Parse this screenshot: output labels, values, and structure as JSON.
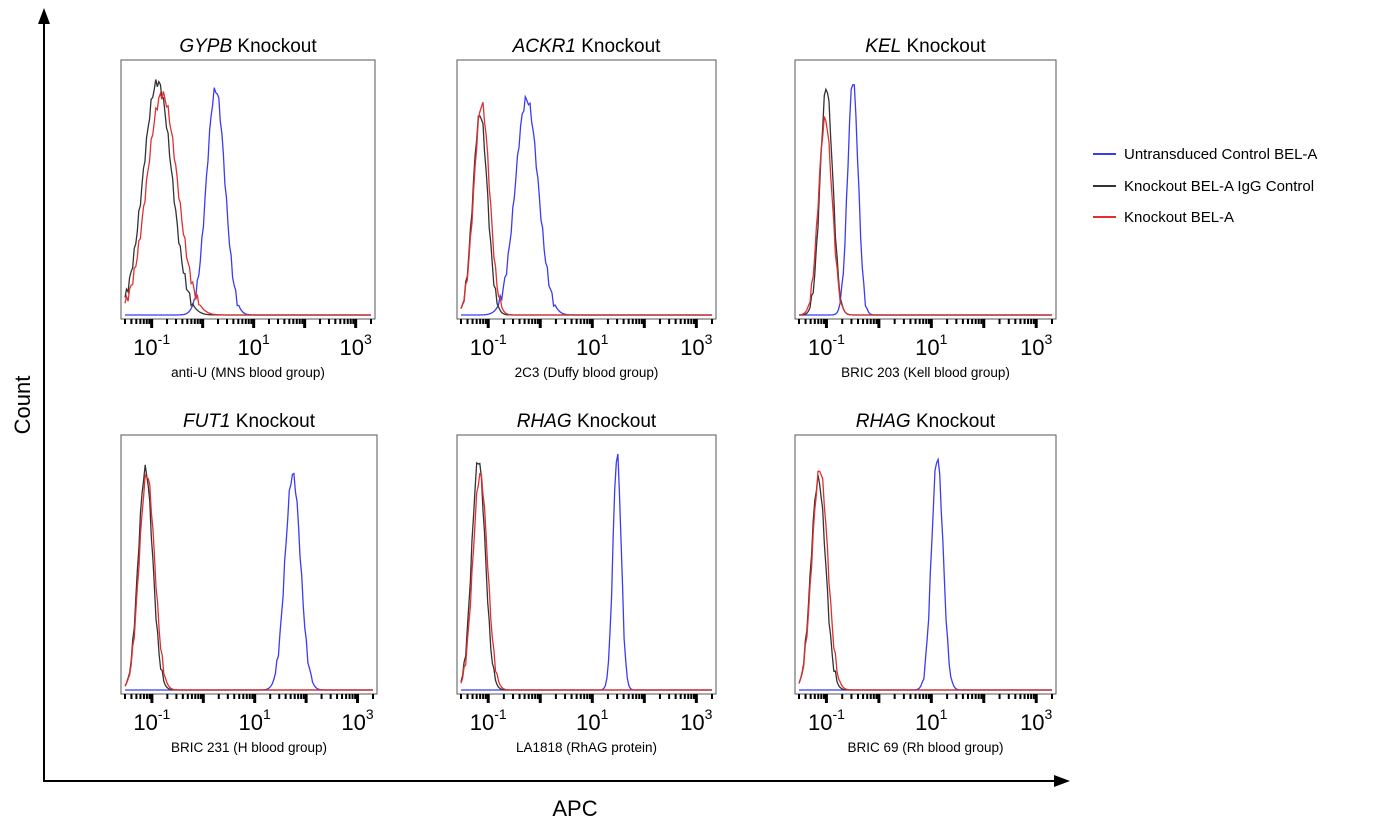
{
  "figure": {
    "y_axis_label": "Count",
    "x_axis_label": "APC"
  },
  "legend": [
    {
      "label": "Untransduced Control BEL-A",
      "color": "#3b3bf5"
    },
    {
      "label": "Knockout BEL-A IgG Control",
      "color": "#333333"
    },
    {
      "label": "Knockout BEL-A",
      "color": "#e03030"
    }
  ],
  "chart_data": [
    {
      "type": "line",
      "scale": "log",
      "title_gene": "GYPB",
      "title_suffix": "Knockout",
      "xlabel": "anti-U (MNS blood group)",
      "xlim": [
        0.03,
        2000
      ],
      "tick_labels": [
        {
          "base": "10",
          "exp": "-1",
          "value": 0.1
        },
        {
          "base": "10",
          "exp": "1",
          "value": 10
        },
        {
          "base": "10",
          "exp": "3",
          "value": 1000
        }
      ],
      "series": [
        {
          "name": "Untransduced Control BEL-A",
          "peaks": [
            {
              "center": 1.8,
              "width": 0.18,
              "height": 0.92
            }
          ]
        },
        {
          "name": "Knockout BEL-A IgG Control",
          "peaks": [
            {
              "center": 0.13,
              "width": 0.28,
              "height": 0.95
            }
          ]
        },
        {
          "name": "Knockout BEL-A",
          "peaks": [
            {
              "center": 0.16,
              "width": 0.3,
              "height": 0.9
            }
          ]
        }
      ]
    },
    {
      "type": "line",
      "scale": "log",
      "title_gene": "ACKR1",
      "title_suffix": "Knockout",
      "xlabel": "2C3 (Duffy blood group)",
      "xlim": [
        0.03,
        2000
      ],
      "tick_labels": [
        {
          "base": "10",
          "exp": "-1",
          "value": 0.1
        },
        {
          "base": "10",
          "exp": "1",
          "value": 10
        },
        {
          "base": "10",
          "exp": "3",
          "value": 1000
        }
      ],
      "series": [
        {
          "name": "Untransduced Control BEL-A",
          "peaks": [
            {
              "center": 0.55,
              "width": 0.22,
              "height": 0.88
            }
          ]
        },
        {
          "name": "Knockout BEL-A IgG Control",
          "peaks": [
            {
              "center": 0.07,
              "width": 0.14,
              "height": 0.82
            }
          ]
        },
        {
          "name": "Knockout BEL-A",
          "peaks": [
            {
              "center": 0.075,
              "width": 0.15,
              "height": 0.86
            }
          ]
        }
      ]
    },
    {
      "type": "line",
      "scale": "log",
      "title_gene": "KEL",
      "title_suffix": "Knockout",
      "xlabel": "BRIC 203 (Kell blood group)",
      "xlim": [
        0.03,
        2000
      ],
      "tick_labels": [
        {
          "base": "10",
          "exp": "-1",
          "value": 0.1
        },
        {
          "base": "10",
          "exp": "1",
          "value": 10
        },
        {
          "base": "10",
          "exp": "3",
          "value": 1000
        }
      ],
      "series": [
        {
          "name": "Untransduced Control BEL-A",
          "peaks": [
            {
              "center": 0.32,
              "width": 0.1,
              "height": 0.96
            }
          ]
        },
        {
          "name": "Knockout BEL-A IgG Control",
          "peaks": [
            {
              "center": 0.1,
              "width": 0.12,
              "height": 0.93
            }
          ]
        },
        {
          "name": "Knockout BEL-A",
          "peaks": [
            {
              "center": 0.095,
              "width": 0.13,
              "height": 0.8
            }
          ]
        }
      ]
    },
    {
      "type": "line",
      "scale": "log",
      "title_gene": "FUT1",
      "title_suffix": "Knockout",
      "xlabel": "BRIC 231 (H blood group)",
      "xlim": [
        0.03,
        2000
      ],
      "tick_labels": [
        {
          "base": "10",
          "exp": "-1",
          "value": 0.1
        },
        {
          "base": "10",
          "exp": "1",
          "value": 10
        },
        {
          "base": "10",
          "exp": "3",
          "value": 1000
        }
      ],
      "series": [
        {
          "name": "Untransduced Control BEL-A",
          "peaks": [
            {
              "center": 55,
              "width": 0.15,
              "height": 0.88
            }
          ]
        },
        {
          "name": "Knockout BEL-A IgG Control",
          "peaks": [
            {
              "center": 0.075,
              "width": 0.14,
              "height": 0.9
            }
          ]
        },
        {
          "name": "Knockout BEL-A",
          "peaks": [
            {
              "center": 0.08,
              "width": 0.15,
              "height": 0.88
            }
          ]
        }
      ]
    },
    {
      "type": "line",
      "scale": "log",
      "title_gene": "RHAG",
      "title_suffix": "Knockout",
      "xlabel": "LA1818 (RhAG protein)",
      "xlim": [
        0.03,
        2000
      ],
      "tick_labels": [
        {
          "base": "10",
          "exp": "-1",
          "value": 0.1
        },
        {
          "base": "10",
          "exp": "1",
          "value": 10
        },
        {
          "base": "10",
          "exp": "3",
          "value": 1000
        }
      ],
      "series": [
        {
          "name": "Untransduced Control BEL-A",
          "peaks": [
            {
              "center": 30,
              "width": 0.08,
              "height": 0.96
            }
          ]
        },
        {
          "name": "Knockout BEL-A IgG Control",
          "peaks": [
            {
              "center": 0.065,
              "width": 0.13,
              "height": 0.94
            }
          ]
        },
        {
          "name": "Knockout BEL-A",
          "peaks": [
            {
              "center": 0.07,
              "width": 0.14,
              "height": 0.88
            }
          ]
        }
      ]
    },
    {
      "type": "line",
      "scale": "log",
      "title_gene": "RHAG",
      "title_suffix": "Knockout",
      "xlabel": "BRIC 69 (Rh blood group)",
      "xlim": [
        0.03,
        2000
      ],
      "tick_labels": [
        {
          "base": "10",
          "exp": "-1",
          "value": 0.1
        },
        {
          "base": "10",
          "exp": "1",
          "value": 10
        },
        {
          "base": "10",
          "exp": "3",
          "value": 1000
        }
      ],
      "series": [
        {
          "name": "Untransduced Control BEL-A",
          "peaks": [
            {
              "center": 13,
              "width": 0.11,
              "height": 0.95
            }
          ]
        },
        {
          "name": "Knockout BEL-A IgG Control",
          "peaks": [
            {
              "center": 0.07,
              "width": 0.14,
              "height": 0.86
            }
          ]
        },
        {
          "name": "Knockout BEL-A",
          "peaks": [
            {
              "center": 0.075,
              "width": 0.15,
              "height": 0.9
            }
          ]
        }
      ]
    }
  ]
}
